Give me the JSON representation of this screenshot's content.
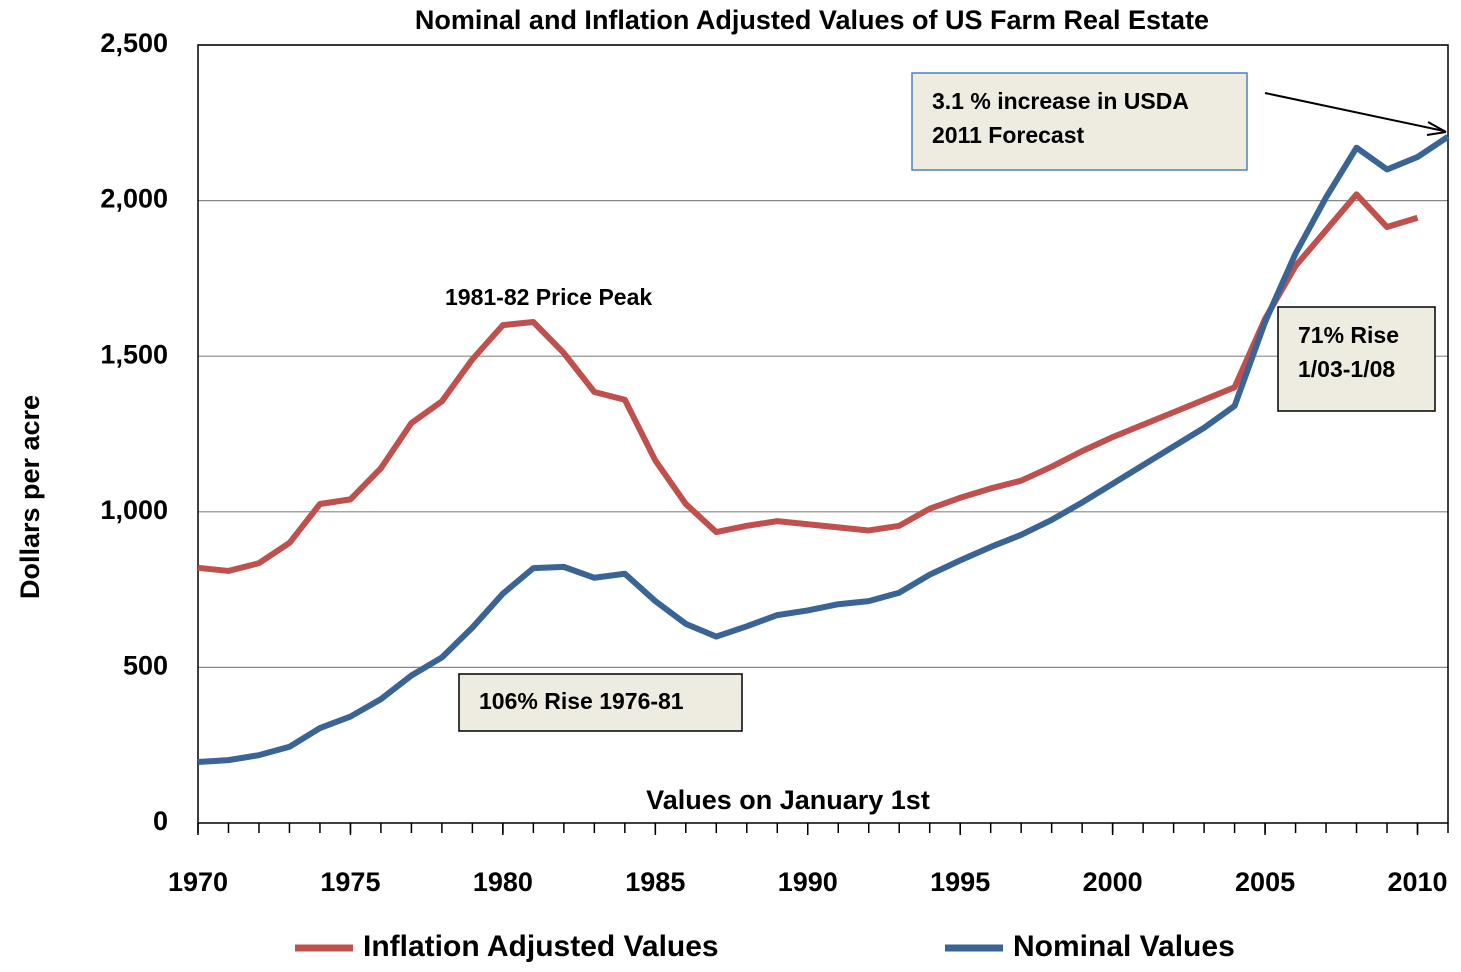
{
  "chart_data": {
    "type": "line",
    "title": "Nominal and Inflation Adjusted Values of US Farm Real Estate",
    "y_label": "Dollars per acre",
    "x_label": "Values on January 1st",
    "x": [
      1970,
      1971,
      1972,
      1973,
      1974,
      1975,
      1976,
      1977,
      1978,
      1979,
      1980,
      1981,
      1982,
      1983,
      1984,
      1985,
      1986,
      1987,
      1988,
      1989,
      1990,
      1991,
      1992,
      1993,
      1994,
      1995,
      1996,
      1997,
      1998,
      1999,
      2000,
      2001,
      2002,
      2003,
      2004,
      2005,
      2006,
      2007,
      2008,
      2009,
      2010,
      2011
    ],
    "series": [
      {
        "name": "Inflation Adjusted Values",
        "color": "#c0504d",
        "values": [
          820,
          810,
          835,
          900,
          1025,
          1040,
          1140,
          1285,
          1355,
          1490,
          1600,
          1610,
          1510,
          1385,
          1360,
          1165,
          1025,
          935,
          955,
          970,
          960,
          950,
          940,
          955,
          1010,
          1045,
          1075,
          1100,
          1145,
          1195,
          1240,
          1280,
          1320,
          1360,
          1400,
          1620,
          1790,
          1905,
          2020,
          1915,
          1945,
          null
        ]
      },
      {
        "name": "Nominal Values",
        "color": "#3a6496",
        "values": [
          196,
          202,
          218,
          245,
          305,
          342,
          398,
          474,
          532,
          628,
          737,
          819,
          823,
          788,
          801,
          713,
          640,
          599,
          632,
          668,
          683,
          703,
          713,
          740,
          798,
          844,
          887,
          926,
          974,
          1030,
          1090,
          1150,
          1210,
          1270,
          1340,
          1610,
          1830,
          2010,
          2170,
          2100,
          2140,
          2205
        ]
      }
    ],
    "xlim": [
      1970,
      2011
    ],
    "xticks": [
      1970,
      1975,
      1980,
      1985,
      1990,
      1995,
      2000,
      2005,
      2010
    ],
    "ylim": [
      0,
      2500
    ],
    "yticks": [
      0,
      {
        "value": 500,
        "label": "500"
      },
      {
        "value": 1000,
        "label": "1,000"
      },
      {
        "value": 1500,
        "label": "1,500"
      },
      {
        "value": 2000,
        "label": "2,000"
      },
      {
        "value": 2500,
        "label": "2,500"
      }
    ],
    "grid": true,
    "legend": "bottom",
    "annotations": [
      {
        "lines": [
          "3.1 % increase in USDA",
          "2011 Forecast"
        ]
      },
      {
        "lines": [
          "1981-82 Price Peak"
        ]
      },
      {
        "lines": [
          "71% Rise",
          "1/03-1/08"
        ]
      },
      {
        "lines": [
          "106% Rise 1976-81"
        ]
      }
    ]
  }
}
